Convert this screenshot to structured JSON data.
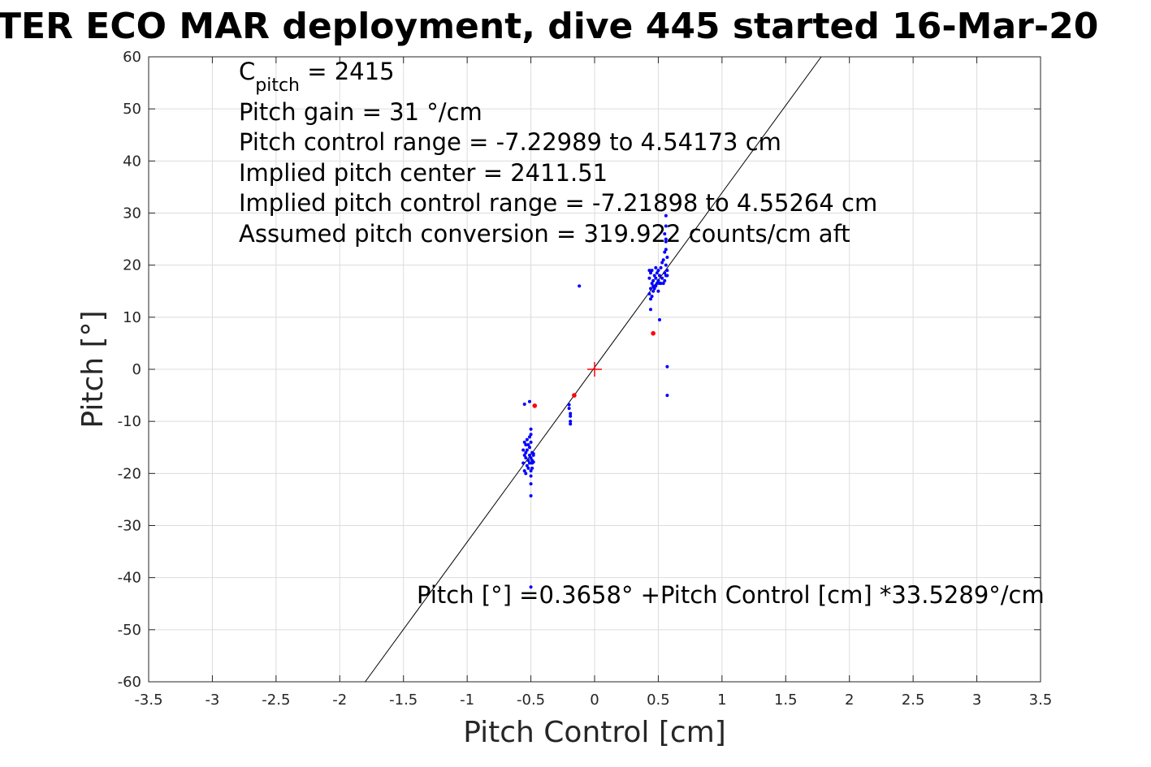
{
  "chart_data": {
    "type": "scatter",
    "title": "TER ECO MAR deployment, dive 445 started 16-Mar-20",
    "xlabel": "Pitch Control [cm]",
    "ylabel": "Pitch [°]",
    "xlim": [
      -3.5,
      3.5
    ],
    "ylim": [
      -60,
      60
    ],
    "xticks": [
      -3.5,
      -3,
      -2.5,
      -2,
      -1.5,
      -1,
      -0.5,
      0,
      0.5,
      1,
      1.5,
      2,
      2.5,
      3,
      3.5
    ],
    "yticks": [
      -60,
      -50,
      -40,
      -30,
      -20,
      -10,
      0,
      10,
      20,
      30,
      40,
      50,
      60
    ],
    "xtick_labels": [
      "-3.5",
      "-3",
      "-2.5",
      "-2",
      "-1.5",
      "-1",
      "-0.5",
      "0",
      "0.5",
      "1",
      "1.5",
      "2",
      "2.5",
      "3",
      "3.5"
    ],
    "ytick_labels": [
      "-60",
      "-50",
      "-40",
      "-30",
      "-20",
      "-10",
      "0",
      "10",
      "20",
      "30",
      "40",
      "50",
      "60"
    ],
    "grid": true,
    "series": [
      {
        "marker": "dot",
        "color": "#0000ff",
        "x": [
          -0.56,
          -0.56,
          -0.55,
          -0.55,
          -0.55,
          -0.54,
          -0.54,
          -0.54,
          -0.54,
          -0.53,
          -0.53,
          -0.53,
          -0.52,
          -0.52,
          -0.52,
          -0.51,
          -0.51,
          -0.51,
          -0.5,
          -0.5,
          -0.5,
          -0.5,
          -0.49,
          -0.49,
          -0.49,
          -0.48,
          -0.48,
          -0.48,
          -0.55,
          -0.51,
          -0.5,
          -0.51,
          -0.5,
          -0.5,
          -0.5,
          -0.49,
          -0.5,
          -0.2,
          -0.2,
          -0.19,
          -0.19,
          -0.19,
          -0.19,
          -0.12,
          0.43,
          0.43,
          0.44,
          0.44,
          0.44,
          0.45,
          0.45,
          0.45,
          0.46,
          0.46,
          0.46,
          0.47,
          0.47,
          0.48,
          0.48,
          0.48,
          0.49,
          0.49,
          0.5,
          0.5,
          0.5,
          0.51,
          0.51,
          0.52,
          0.52,
          0.53,
          0.53,
          0.54,
          0.54,
          0.55,
          0.55,
          0.55,
          0.56,
          0.56,
          0.56,
          0.57,
          0.57,
          0.57,
          0.56,
          0.55,
          0.56,
          0.56,
          0.56,
          0.43,
          0.44,
          0.51,
          0.57,
          0.57
        ],
        "y": [
          -15.5,
          -18.0,
          -14.0,
          -16.5,
          -19.5,
          -17.0,
          -14.5,
          -20.0,
          -16.0,
          -18.5,
          -15.5,
          -13.5,
          -17.5,
          -19.0,
          -14.5,
          -16.5,
          -18.0,
          -15.0,
          -17.0,
          -19.5,
          -14.0,
          -20.5,
          -16.0,
          -18.0,
          -17.5,
          -16.5,
          -17.8,
          -16.2,
          -6.7,
          -6.2,
          -11.5,
          -13.0,
          -12.5,
          -22.0,
          -24.3,
          -19.0,
          -41.8,
          -6.8,
          -7.5,
          -8.5,
          -10.0,
          -10.5,
          -9.0,
          16.0,
          14.5,
          17.5,
          15.5,
          13.5,
          18.5,
          16.5,
          14.0,
          19.0,
          16.0,
          17.0,
          15.0,
          18.0,
          15.5,
          17.5,
          19.5,
          16.0,
          16.5,
          18.5,
          17.0,
          15.0,
          19.0,
          16.5,
          18.0,
          16.5,
          19.5,
          17.5,
          20.5,
          16.5,
          21.0,
          17.0,
          18.5,
          22.5,
          18.0,
          20.0,
          23.0,
          19.0,
          21.5,
          18.0,
          24.5,
          26.0,
          27.5,
          29.5,
          25.0,
          19.0,
          11.5,
          9.5,
          0.5,
          -5.0
        ],
        "r": 2.0
      },
      {
        "marker": "dot",
        "color": "#ff0000",
        "x": [
          -0.47,
          -0.16,
          0.46
        ],
        "y": [
          -7.0,
          -5.0,
          6.9
        ],
        "r": 2.8
      }
    ],
    "fit_line": {
      "intercept": 0.3658,
      "slope": 33.5289,
      "color": "#000000"
    },
    "center_marker": {
      "x": 0,
      "y": 0,
      "marker": "+",
      "color": "#ff0000"
    },
    "annotations": {
      "cpitch_base": "C",
      "cpitch_sub": "pitch",
      "cpitch_value": " = 2415",
      "lines": [
        "Pitch gain = 31 °/cm",
        "Pitch control range = -7.22989 to 4.54173 cm",
        "Implied pitch center = 2411.51",
        "Implied pitch control range = -7.21898 to 4.55264 cm",
        "Assumed pitch conversion = 319.922 counts/cm aft"
      ],
      "fit_text": "Pitch [°] =0.3658° +Pitch Control [cm] *33.5289°/cm"
    }
  }
}
